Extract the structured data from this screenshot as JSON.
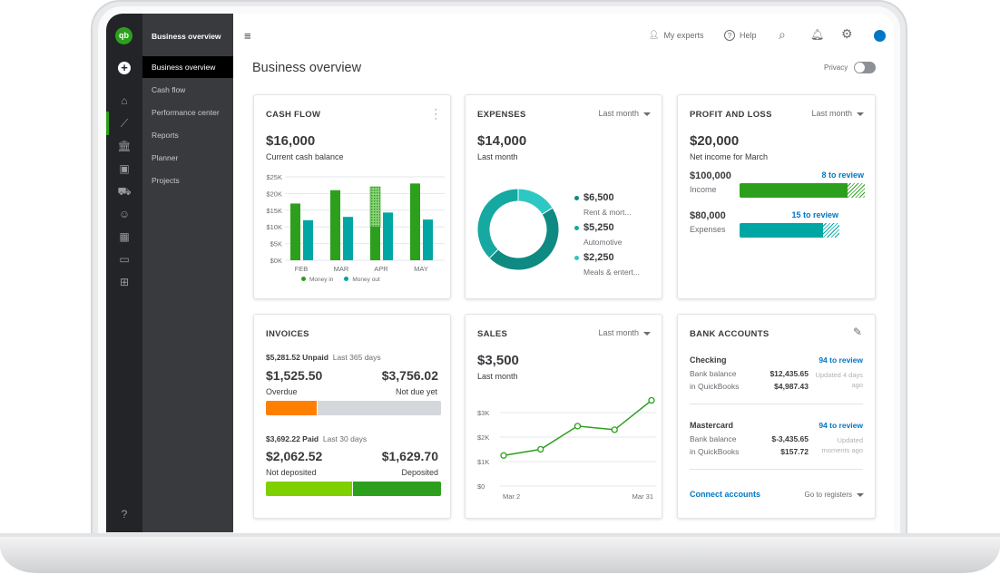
{
  "sidebar": {
    "logo": "qb",
    "title": "Business overview",
    "items": [
      {
        "label": "Business overview",
        "selected": true
      },
      {
        "label": "Cash flow"
      },
      {
        "label": "Performance center"
      },
      {
        "label": "Reports"
      },
      {
        "label": "Planner"
      },
      {
        "label": "Projects"
      }
    ],
    "rail_icons": [
      "home-icon",
      "chart-icon",
      "bank-icon",
      "receipt-icon",
      "cart-icon",
      "people-icon",
      "calculator-icon",
      "monitor-icon",
      "apps-icon"
    ]
  },
  "topbar": {
    "my_experts": "My experts",
    "help": "Help",
    "avatar_color": "#0077c5"
  },
  "page": {
    "title": "Business overview",
    "privacy": "Privacy",
    "privacy_on": false
  },
  "cash_flow": {
    "title": "CASH FLOW",
    "amount": "$16,000",
    "subtitle": "Current cash balance",
    "legend_in": "Money in",
    "legend_out": "Money out"
  },
  "expenses": {
    "title": "EXPENSES",
    "period": "Last month",
    "amount": "$14,000",
    "subtitle": "Last month",
    "items": [
      {
        "amount": "$6,500",
        "label": "Rent & mort...",
        "color": "#0e8a82"
      },
      {
        "amount": "$5,250",
        "label": "Automotive",
        "color": "#16a9a1"
      },
      {
        "amount": "$2,250",
        "label": "Meals & entert...",
        "color": "#2ec8c4"
      }
    ]
  },
  "profit_loss": {
    "title": "PROFIT AND LOSS",
    "period": "Last month",
    "amount": "$20,000",
    "subtitle": "Net income for March",
    "income": {
      "amount": "$100,000",
      "label": "Income",
      "review": "8 to review",
      "fill": 0.86
    },
    "expenses": {
      "amount": "$80,000",
      "label": "Expenses",
      "review": "15 to review",
      "fill": 0.84
    }
  },
  "invoices": {
    "title": "INVOICES",
    "unpaid": "$5,281.52 Unpaid",
    "unpaid_period": "Last 365 days",
    "overdue": "$1,525.50",
    "overdue_label": "Overdue",
    "not_due": "$3,756.02",
    "not_due_label": "Not due yet",
    "paid": "$3,692.22 Paid",
    "paid_period": "Last 30 days",
    "not_deposited": "$2,062.52",
    "not_deposited_label": "Not deposited",
    "deposited": "$1,629.70",
    "deposited_label": "Deposited"
  },
  "sales": {
    "title": "SALES",
    "period": "Last month",
    "amount": "$3,500",
    "subtitle": "Last month"
  },
  "bank": {
    "title": "BANK ACCOUNTS",
    "accounts": [
      {
        "name": "Checking",
        "review": "94 to review",
        "bank_label": "Bank balance",
        "bank": "$12,435.65",
        "qb_label": "in QuickBooks",
        "qb": "$4,987.43",
        "updated": "Updated 4 days ago"
      },
      {
        "name": "Mastercard",
        "review": "94 to review",
        "bank_label": "Bank balance",
        "bank": "$-3,435.65",
        "qb_label": "in QuickBooks",
        "qb": "$157.72",
        "updated": "Updated moments ago"
      }
    ],
    "connect": "Connect accounts",
    "registers": "Go to registers"
  },
  "chart_data": [
    {
      "type": "bar",
      "categories": [
        "FEB",
        "MAR",
        "APR",
        "MAY"
      ],
      "yticks": [
        "$0K",
        "$5K",
        "$10K",
        "$15K",
        "$20K",
        "$25K"
      ],
      "ylim": [
        0,
        25
      ],
      "series": [
        {
          "name": "Money in",
          "values": [
            17,
            21,
            22,
            23
          ],
          "color": "#2ca01c"
        },
        {
          "name": "Money out",
          "values": [
            12,
            13,
            14.3,
            12.2
          ],
          "color": "#00a6a4"
        }
      ],
      "projected": {
        "category": "APR",
        "actual_in": 10
      },
      "legend": "bottom"
    },
    {
      "type": "pie",
      "donut": true,
      "values": [
        6500,
        5250,
        2250
      ],
      "labels": [
        "Rent & mort...",
        "Automotive",
        "Meals & entert..."
      ]
    },
    {
      "type": "line",
      "x": [
        "Mar 2",
        "",
        "",
        "",
        "Mar 31"
      ],
      "xticks": [
        "Mar 2",
        "Mar 31"
      ],
      "yticks": [
        "$0",
        "$1K",
        "$2K",
        "$3K"
      ],
      "ylim": [
        0,
        3.5
      ],
      "values": [
        1.25,
        1.5,
        2.45,
        2.3,
        3.5
      ],
      "color": "#2ca01c"
    }
  ]
}
